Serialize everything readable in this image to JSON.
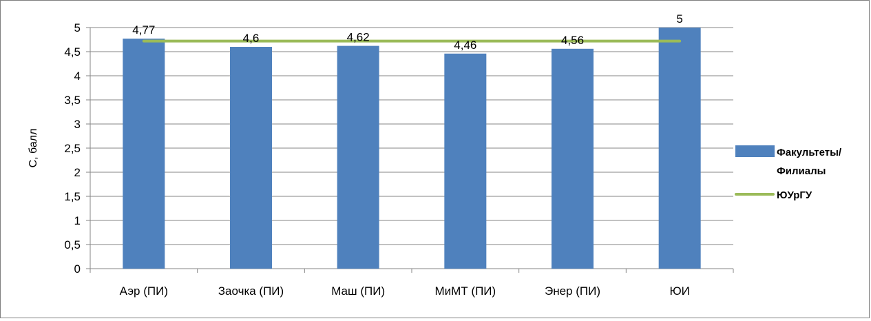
{
  "chart_data": {
    "type": "bar",
    "categories": [
      "Аэр (ПИ)",
      "Заочка (ПИ)",
      "Маш (ПИ)",
      "МиМТ (ПИ)",
      "Энер (ПИ)",
      "ЮИ"
    ],
    "series": [
      {
        "name": "Факультеты/ Филиалы",
        "type": "bar",
        "values": [
          4.77,
          4.6,
          4.62,
          4.46,
          4.56,
          5
        ],
        "color": "#4f81bd"
      },
      {
        "name": "ЮУрГУ",
        "type": "line",
        "values": [
          4.72,
          4.72,
          4.72,
          4.72,
          4.72,
          4.72
        ],
        "color": "#9bbb59"
      }
    ],
    "data_labels": [
      "4,77",
      "4,6",
      "4,62",
      "4,46",
      "4,56",
      "5"
    ],
    "ylabel": "С, балл",
    "ylim": [
      0,
      5
    ],
    "yticks": [
      "0",
      "0,5",
      "1",
      "1,5",
      "2",
      "2,5",
      "3",
      "3,5",
      "4",
      "4,5",
      "5"
    ],
    "grid": true,
    "legend_position": "right",
    "legend": {
      "bar_label_line1": "Факультеты/",
      "bar_label_line2": "Филиалы",
      "line_label": "ЮУрГУ"
    }
  }
}
